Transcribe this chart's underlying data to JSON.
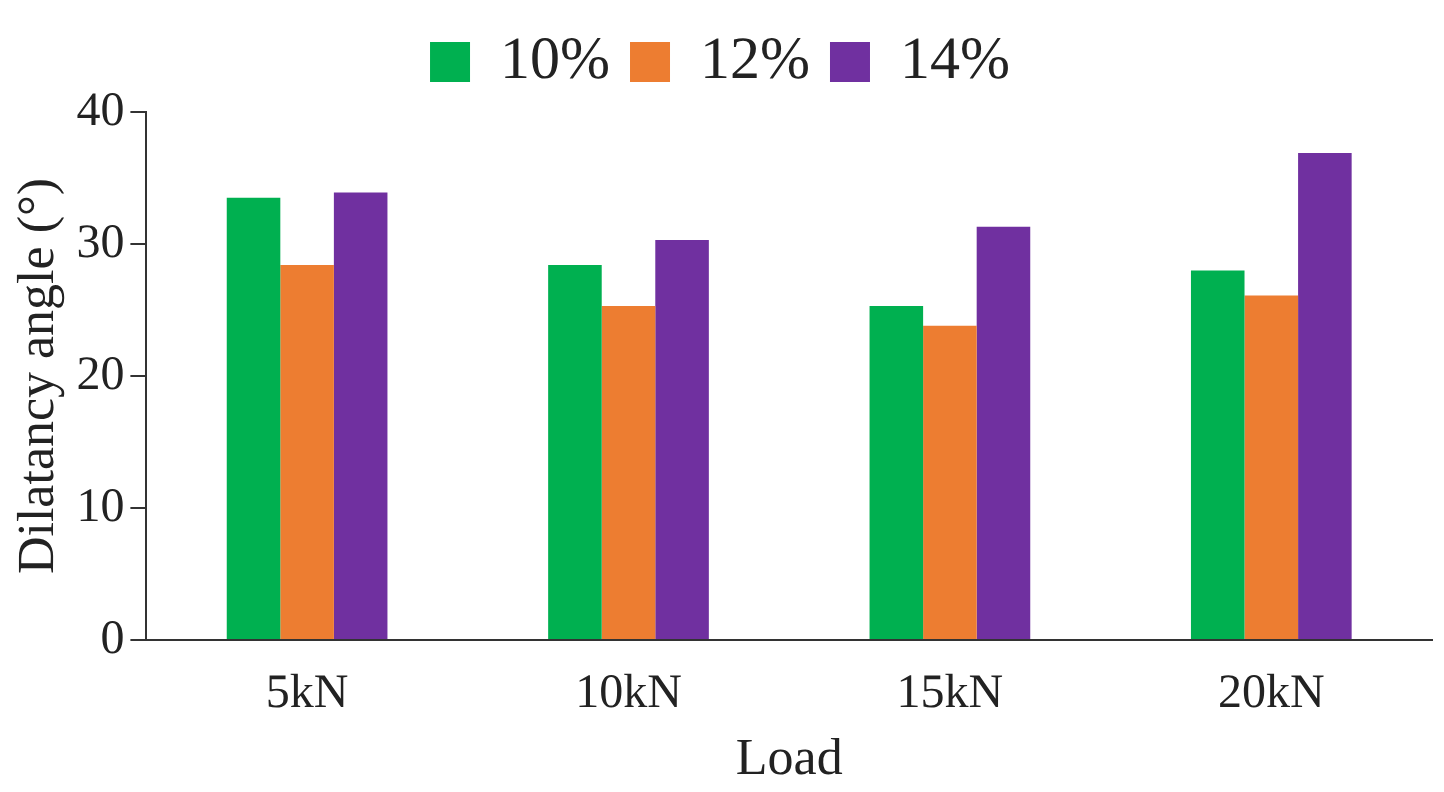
{
  "chart_data": {
    "type": "bar",
    "xlabel": "Load",
    "ylabel": "Dilatancy angle (°)",
    "categories": [
      "5kN",
      "10kN",
      "15kN",
      "20kN"
    ],
    "series": [
      {
        "name": "10%",
        "color": "#00b050",
        "values": [
          33.5,
          28.4,
          25.3,
          28.0
        ]
      },
      {
        "name": "12%",
        "color": "#ed7d31",
        "values": [
          28.4,
          25.3,
          23.8,
          26.1
        ]
      },
      {
        "name": "14%",
        "color": "#7030a0",
        "values": [
          33.9,
          30.3,
          31.3,
          36.9
        ]
      }
    ],
    "ylim": [
      0,
      40
    ],
    "yticks": [
      0,
      10,
      20,
      30,
      40
    ],
    "grid": false,
    "legend": "top"
  }
}
